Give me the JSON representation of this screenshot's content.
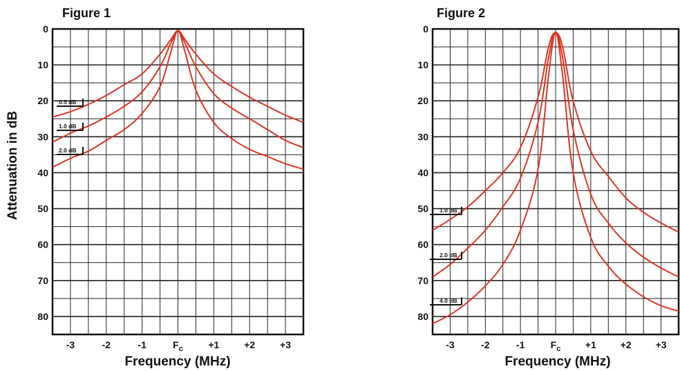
{
  "chart_data": [
    {
      "type": "line",
      "title": "Figure 1",
      "xlabel": "Frequency (MHz)",
      "ylabel": "Attenuation in dB",
      "x_ticks": [
        "-3",
        "-2",
        "-1",
        "F",
        "+1",
        "+2",
        "+3"
      ],
      "x_center_label": {
        "main": "F",
        "sub": "c"
      },
      "y_ticks": [
        "0",
        "10",
        "20",
        "30",
        "40",
        "50",
        "60",
        "70",
        "80"
      ],
      "xlim": [
        -3.5,
        3.5
      ],
      "ylim": [
        0,
        85
      ],
      "y_inverted": true,
      "grid": true,
      "line_color": "#e0321f",
      "series": [
        {
          "name": "0.5 dB",
          "x": [
            -3.5,
            -3,
            -2.5,
            -2,
            -1.5,
            -1,
            -0.5,
            -0.2,
            0,
            0.2,
            0.5,
            1,
            1.5,
            2,
            2.5,
            3,
            3.5
          ],
          "y": [
            24.5,
            23,
            21,
            18.5,
            15.5,
            12.5,
            7,
            3,
            0.5,
            3,
            7,
            12.5,
            16,
            19,
            21.5,
            24,
            26
          ]
        },
        {
          "name": "1.0 dB",
          "x": [
            -3.5,
            -3,
            -2.5,
            -2,
            -1.5,
            -1,
            -0.5,
            -0.2,
            0,
            0.2,
            0.5,
            1,
            1.5,
            2,
            2.5,
            3,
            3.5
          ],
          "y": [
            31.5,
            29,
            27,
            24.5,
            21.5,
            17.5,
            10.5,
            4,
            0.5,
            4,
            10.5,
            18,
            22,
            25,
            28,
            31,
            33
          ]
        },
        {
          "name": "2.0 dB",
          "x": [
            -3.5,
            -3,
            -2.5,
            -2,
            -1.5,
            -1,
            -0.5,
            -0.2,
            0,
            0.2,
            0.5,
            1,
            1.5,
            2,
            2.5,
            3,
            3.5
          ],
          "y": [
            38.5,
            36,
            34,
            31,
            28,
            23.5,
            16,
            6.5,
            0.5,
            6.5,
            17,
            26,
            30.5,
            33.5,
            35.5,
            37.5,
            39
          ]
        }
      ],
      "annotations": [
        "0.5 dB",
        "1.0 dB",
        "2.0 dB"
      ]
    },
    {
      "type": "line",
      "title": "Figure 2",
      "xlabel": "Frequency (MHz)",
      "ylabel": "",
      "x_ticks": [
        "-3",
        "-2",
        "-1",
        "F",
        "+1",
        "+2",
        "+3"
      ],
      "x_center_label": {
        "main": "F",
        "sub": "c"
      },
      "y_ticks": [
        "0",
        "10",
        "20",
        "30",
        "40",
        "50",
        "60",
        "70",
        "80"
      ],
      "xlim": [
        -3.5,
        3.5
      ],
      "ylim": [
        0,
        85
      ],
      "y_inverted": true,
      "grid": true,
      "line_color": "#e0321f",
      "series": [
        {
          "name": "1.0 dB",
          "x": [
            -3.5,
            -3,
            -2.5,
            -2,
            -1.5,
            -1,
            -0.5,
            -0.2,
            0,
            0.2,
            0.5,
            1,
            1.5,
            2,
            2.5,
            3,
            3.5
          ],
          "y": [
            56,
            53,
            49.5,
            45,
            40,
            33,
            19,
            5,
            1,
            5,
            20,
            34,
            41,
            47,
            51,
            54,
            56.5
          ]
        },
        {
          "name": "2.0 dB",
          "x": [
            -3.5,
            -3,
            -2.5,
            -2,
            -1.5,
            -1,
            -0.5,
            -0.2,
            0,
            0.2,
            0.5,
            1,
            1.5,
            2,
            2.5,
            3,
            3.5
          ],
          "y": [
            69,
            65.5,
            61,
            56,
            49.5,
            41.5,
            26,
            8,
            1,
            8,
            28,
            46,
            54,
            59.5,
            63.5,
            66.5,
            69
          ]
        },
        {
          "name": "4.0 dB",
          "x": [
            -3.5,
            -3,
            -2.5,
            -2,
            -1.5,
            -1,
            -0.5,
            -0.2,
            0,
            0.2,
            0.5,
            1,
            1.5,
            2,
            2.5,
            3,
            3.5
          ],
          "y": [
            82,
            79.5,
            76,
            71.5,
            65.5,
            56,
            39,
            13,
            1,
            13,
            40,
            58,
            66,
            71,
            74.5,
            77,
            78.5
          ]
        }
      ],
      "annotations": [
        "1.0 dB",
        "2.0 dB",
        "4.0 dB"
      ]
    }
  ]
}
